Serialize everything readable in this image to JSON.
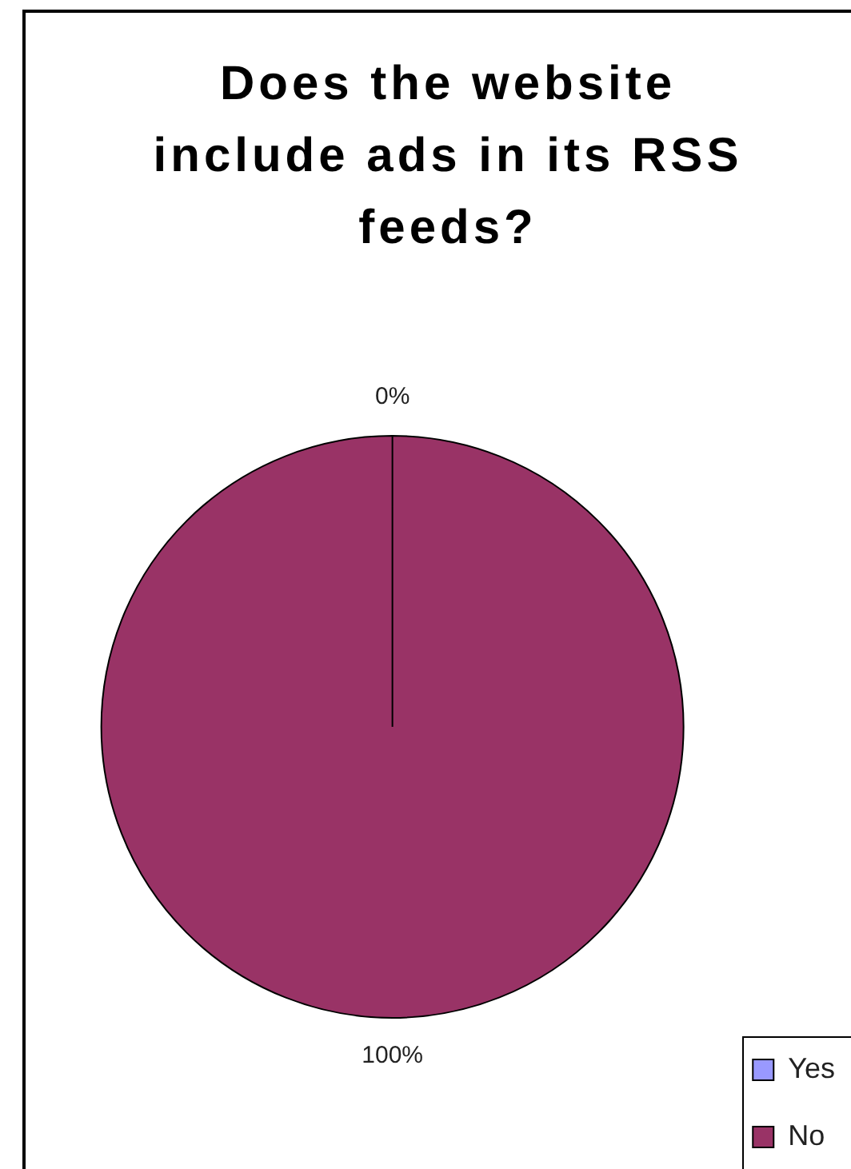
{
  "chart_data": {
    "type": "pie",
    "title": "Does the website include ads in its RSS feeds?",
    "categories": [
      "Yes",
      "No"
    ],
    "values": [
      0,
      100
    ],
    "colors": [
      "#9999ff",
      "#993366"
    ],
    "value_labels": [
      "0%",
      "100%"
    ],
    "legend": "bottom right"
  }
}
